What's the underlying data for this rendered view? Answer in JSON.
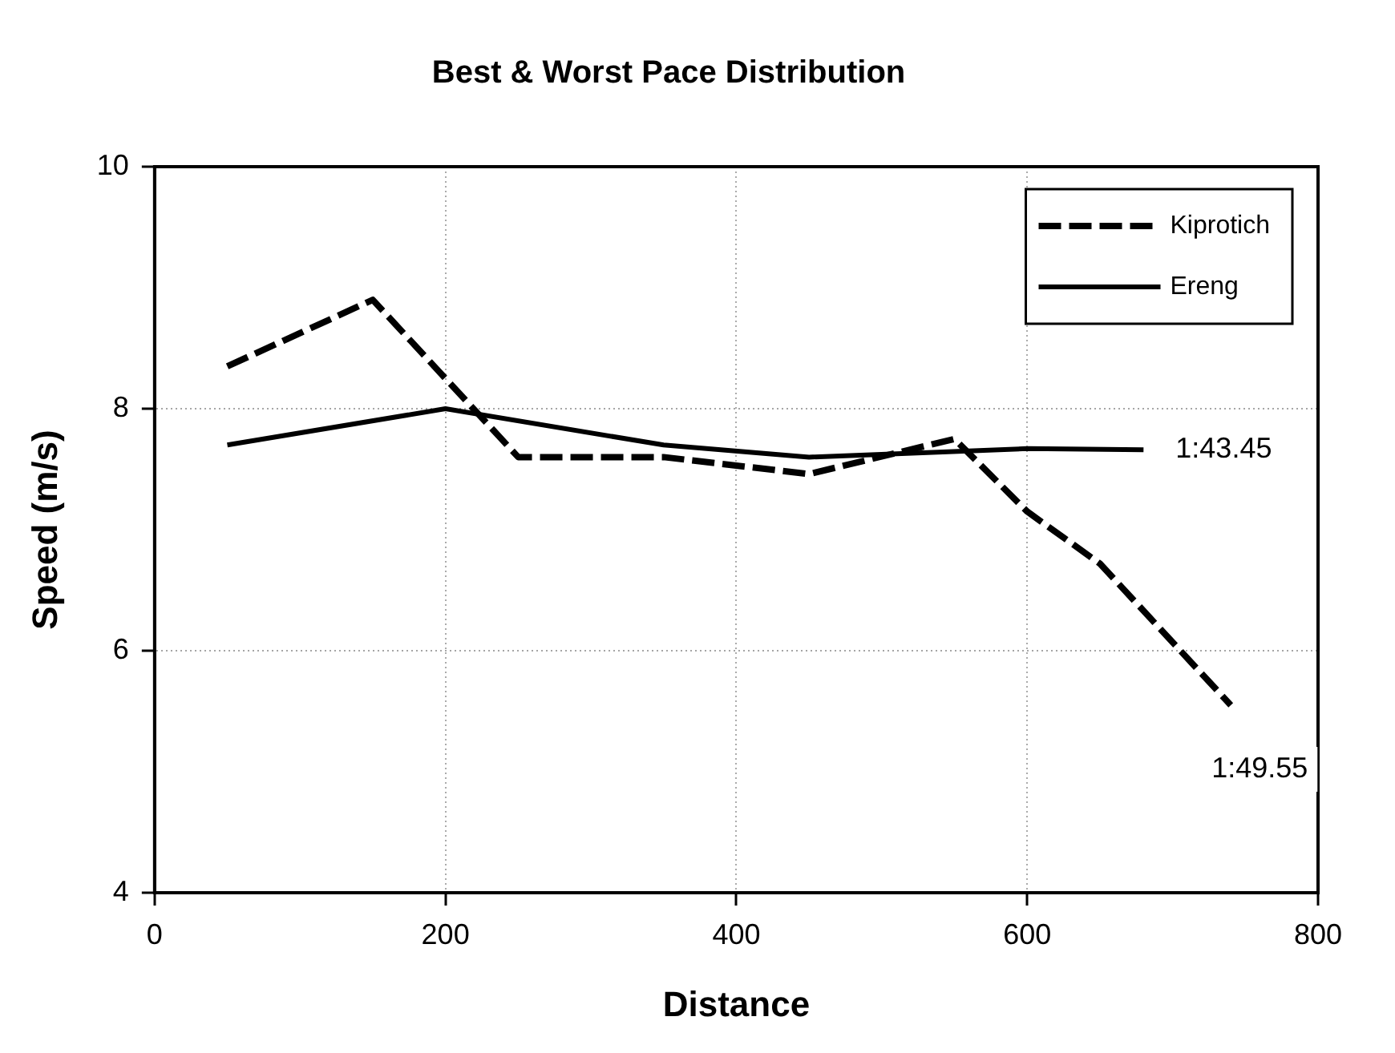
{
  "chart_data": {
    "type": "line",
    "title": "Best & Worst Pace Distribution",
    "xlabel": "Distance",
    "ylabel": "Speed (m/s)",
    "xlim": [
      0,
      800
    ],
    "xticks": [
      0,
      200,
      400,
      600,
      800
    ],
    "ylim": [
      4,
      10
    ],
    "yticks": [
      4,
      6,
      8,
      10
    ],
    "grid": true,
    "legend": "top right",
    "marker": "none",
    "series": [
      {
        "name": "Kiprotich",
        "color": "#000000",
        "line_style": "dashed",
        "x": [
          50,
          150,
          250,
          350,
          450,
          550,
          600,
          650,
          740
        ],
        "values": [
          8.35,
          8.9,
          7.6,
          7.6,
          7.46,
          7.75,
          7.15,
          6.72,
          5.55
        ]
      },
      {
        "name": "Ereng",
        "color": "#000000",
        "line_style": "solid",
        "x": [
          50,
          200,
          350,
          450,
          600,
          680
        ],
        "values": [
          7.7,
          8.0,
          7.7,
          7.6,
          7.67,
          7.66
        ]
      }
    ],
    "annotations": [
      {
        "text": "1:43.45",
        "x": 680,
        "y": 7.66
      },
      {
        "text": "1:49.55",
        "x": 740,
        "y": 5.55
      }
    ]
  }
}
